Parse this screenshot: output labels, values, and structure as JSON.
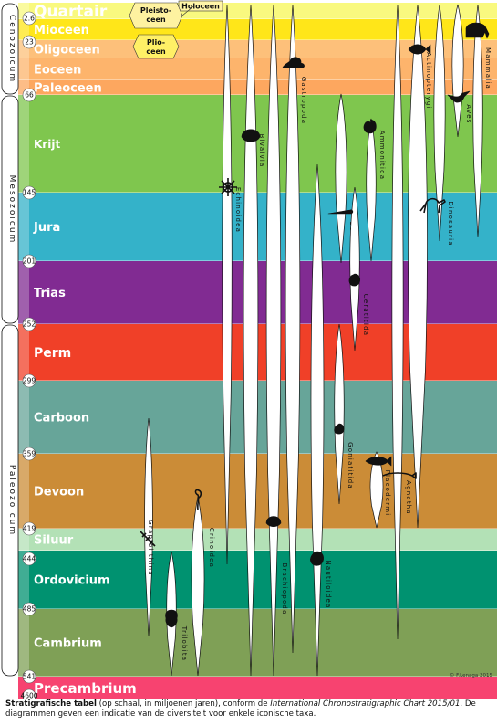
{
  "periods": [
    {
      "name": "Quartair",
      "start": 2.6,
      "color": "#f9f97f"
    },
    {
      "name": "Mioceen",
      "start": 23,
      "color": "#ffe619"
    },
    {
      "name": "Oligoceen",
      "start": 33.9,
      "color": "#fdc07a"
    },
    {
      "name": "Eoceen",
      "start": 56,
      "color": "#fdb46c"
    },
    {
      "name": "Paleoceen",
      "start": 66,
      "color": "#fda75f"
    },
    {
      "name": "Krijt",
      "start": 145,
      "color": "#7fc64e"
    },
    {
      "name": "Jura",
      "start": 201,
      "color": "#34b2c9"
    },
    {
      "name": "Trias",
      "start": 252,
      "color": "#812b92"
    },
    {
      "name": "Perm",
      "start": 299,
      "color": "#f04028"
    },
    {
      "name": "Carboon",
      "start": 359,
      "color": "#67a599"
    },
    {
      "name": "Devoon",
      "start": 419,
      "color": "#cb8c37"
    },
    {
      "name": "Siluur",
      "start": 444,
      "color": "#b3e1b6"
    },
    {
      "name": "Ordovicium",
      "start": 485,
      "color": "#009270"
    },
    {
      "name": "Cambrium",
      "start": 541,
      "color": "#7fa056"
    },
    {
      "name": "Precambrium",
      "start": 4600,
      "color": "#f74370"
    }
  ],
  "eras": [
    {
      "name": "Cenozoicum",
      "start": 66,
      "color": "#f2f91d"
    },
    {
      "name": "Mesozoicum",
      "start": 252,
      "color": "#67c5ca"
    },
    {
      "name": "Paleozoicum",
      "start": 541,
      "color": "#99c08d"
    }
  ],
  "age_labels": [
    "2.6",
    "23",
    "66",
    "145",
    "201",
    "252",
    "299",
    "359",
    "419",
    "444",
    "485",
    "541",
    "4600"
  ],
  "callouts": {
    "holoceen": "Holoceen",
    "pleistoceen": [
      "Pleisto-",
      "ceen"
    ],
    "plioceen": [
      "Plio-",
      "ceen"
    ]
  },
  "taxa": [
    {
      "name": "Graptolithina",
      "silhouette": "graptolite-icon"
    },
    {
      "name": "Trilobita",
      "silhouette": "trilobite-icon"
    },
    {
      "name": "Crinoidea",
      "silhouette": "crinoid-icon"
    },
    {
      "name": "Bivalvia",
      "silhouette": "bivalve-icon"
    },
    {
      "name": "Echinoidea",
      "silhouette": "sea-urchin-icon"
    },
    {
      "name": "Brachiopoda",
      "silhouette": "brachiopod-icon"
    },
    {
      "name": "Gastropoda",
      "silhouette": "snail-icon"
    },
    {
      "name": "Nautiloidea",
      "silhouette": "nautilus-icon"
    },
    {
      "name": "Belemnitida",
      "silhouette": "belemnite-icon"
    },
    {
      "name": "Ceratitida",
      "silhouette": "ceratite-icon"
    },
    {
      "name": "Goniatitida",
      "silhouette": "goniatite-icon"
    },
    {
      "name": "Ammonitida",
      "silhouette": "ammonite-icon"
    },
    {
      "name": "Placodermi",
      "silhouette": "placoderm-icon"
    },
    {
      "name": "Agnatha",
      "silhouette": "jawless-fish-icon"
    },
    {
      "name": "Actinopterygii",
      "silhouette": "ray-finned-fish-icon"
    },
    {
      "name": "Dinosauria",
      "silhouette": "dinosaur-icon"
    },
    {
      "name": "Aves",
      "silhouette": "bird-icon"
    },
    {
      "name": "Mammalia",
      "silhouette": "mammoth-icon"
    }
  ],
  "credit": "© F.Lenaga 2015",
  "caption": {
    "title": "Stratigrafische tabel",
    "text_1": " (op schaal, in miljoenen jaren), conform de ",
    "chart_name": "International Chronostratigraphic Chart 2015/01",
    "text_2": ". De diagrammen geven een indicatie van de diversiteit voor enkele iconische taxa."
  }
}
